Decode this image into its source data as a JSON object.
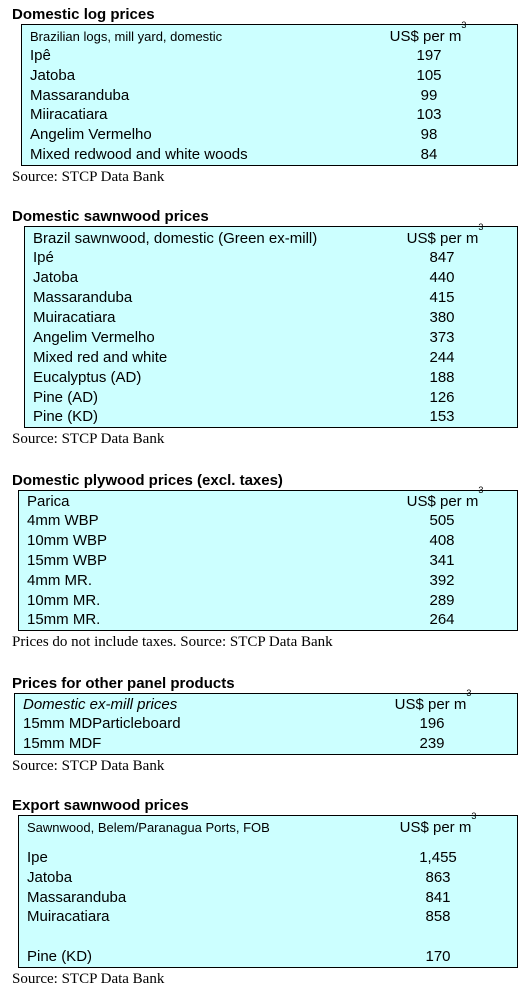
{
  "sections": [
    {
      "title": "Domestic log prices",
      "header_label": "Brazilian logs, mill yard, domestic",
      "unit_label": "US$ per m",
      "unit_sup": "3",
      "rows": [
        {
          "label": "Ipê",
          "value": "197"
        },
        {
          "label": "Jatoba",
          "value": "105"
        },
        {
          "label": "Massaranduba",
          "value": "99"
        },
        {
          "label": "Miiracatiara",
          "value": "103"
        },
        {
          "label": "Angelim Vermelho",
          "value": "98"
        },
        {
          "label": "Mixed redwood and white woods",
          "value": "84"
        }
      ],
      "source": "Source: STCP Data Bank"
    },
    {
      "title": "Domestic sawnwood prices",
      "header_label": "Brazil sawnwood, domestic (Green ex-mill)",
      "unit_label": "US$ per m",
      "unit_sup": "3",
      "rows": [
        {
          "label": "Ipé",
          "value": "847"
        },
        {
          "label": "Jatoba",
          "value": "440"
        },
        {
          "label": "Massaranduba",
          "value": "415"
        },
        {
          "label": "Muiracatiara",
          "value": "380"
        },
        {
          "label": "Angelim Vermelho",
          "value": "373"
        },
        {
          "label": "Mixed red and white",
          "value": "244"
        },
        {
          "label": "Eucalyptus (AD)",
          "value": "188"
        },
        {
          "label": "Pine (AD)",
          "value": "126"
        },
        {
          "label": "Pine (KD)",
          "value": "153"
        }
      ],
      "source": "Source: STCP Data Bank"
    },
    {
      "title": "Domestic plywood prices (excl. taxes)",
      "header_label": "Parica",
      "unit_label": "US$ per m",
      "unit_sup": "3",
      "rows": [
        {
          "label": "4mm WBP",
          "value": "505"
        },
        {
          "label": "10mm WBP",
          "value": "408"
        },
        {
          "label": "15mm WBP",
          "value": "341"
        },
        {
          "label": "4mm MR.",
          "value": "392"
        },
        {
          "label": "10mm MR.",
          "value": "289"
        },
        {
          "label": "15mm MR.",
          "value": "264"
        }
      ],
      "source": "Prices do not include taxes. Source: STCP Data Bank"
    },
    {
      "title": "Prices for other panel products",
      "header_label": "Domestic ex-mill prices",
      "unit_label": "US$ per m",
      "unit_sup": "3",
      "rows": [
        {
          "label": "15mm MDParticleboard",
          "value": "196"
        },
        {
          "label": "15mm MDF",
          "value": "239"
        }
      ],
      "source": "Source: STCP Data Bank"
    },
    {
      "title": "Export sawnwood prices",
      "header_label": "Sawnwood, Belem/Paranagua Ports, FOB",
      "unit_label": "US$ per m",
      "unit_sup": "3",
      "rows": [
        {
          "label": "Ipe",
          "value": "1,455"
        },
        {
          "label": "Jatoba",
          "value": "863"
        },
        {
          "label": "Massaranduba",
          "value": "841"
        },
        {
          "label": "Muiracatiara",
          "value": "858"
        },
        {
          "label": "Pine (KD)",
          "value": "170"
        }
      ],
      "source": "Source: STCP Data Bank"
    }
  ]
}
